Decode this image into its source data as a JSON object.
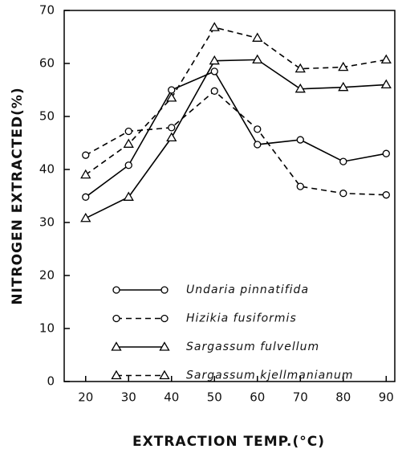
{
  "chart_data": {
    "type": "line",
    "xlabel": "EXTRACTION TEMP.(°C)",
    "ylabel": "NITROGEN EXTRACTED(%)",
    "x": [
      20,
      30,
      40,
      50,
      60,
      70,
      80,
      90
    ],
    "xlim": [
      15,
      92
    ],
    "xticks": [
      20,
      30,
      40,
      50,
      60,
      70,
      80,
      90
    ],
    "ylim": [
      0,
      70
    ],
    "yticks": [
      0,
      10,
      20,
      30,
      40,
      50,
      60,
      70
    ],
    "series": [
      {
        "name": "Undaria pinnatifida",
        "color": "#000",
        "marker": "circle",
        "dashed": false,
        "values": [
          34.8,
          40.8,
          55,
          58.5,
          44.7,
          45.6,
          41.5,
          43
        ]
      },
      {
        "name": "Hizikia fusiformis",
        "color": "#000",
        "marker": "circle",
        "dashed": true,
        "values": [
          42.7,
          47.2,
          47.9,
          54.8,
          47.6,
          36.8,
          35.5,
          35.2
        ]
      },
      {
        "name": "Sargassum fulvellum",
        "color": "#000",
        "marker": "triangle",
        "dashed": false,
        "values": [
          30.8,
          34.8,
          46,
          60.5,
          60.7,
          55.2,
          55.5,
          56
        ]
      },
      {
        "name": "Sargassum kjellmanianum",
        "color": "#000",
        "marker": "triangle",
        "dashed": true,
        "values": [
          39,
          44.8,
          53.5,
          66.8,
          64.8,
          59,
          59.3,
          60.7
        ]
      }
    ]
  }
}
